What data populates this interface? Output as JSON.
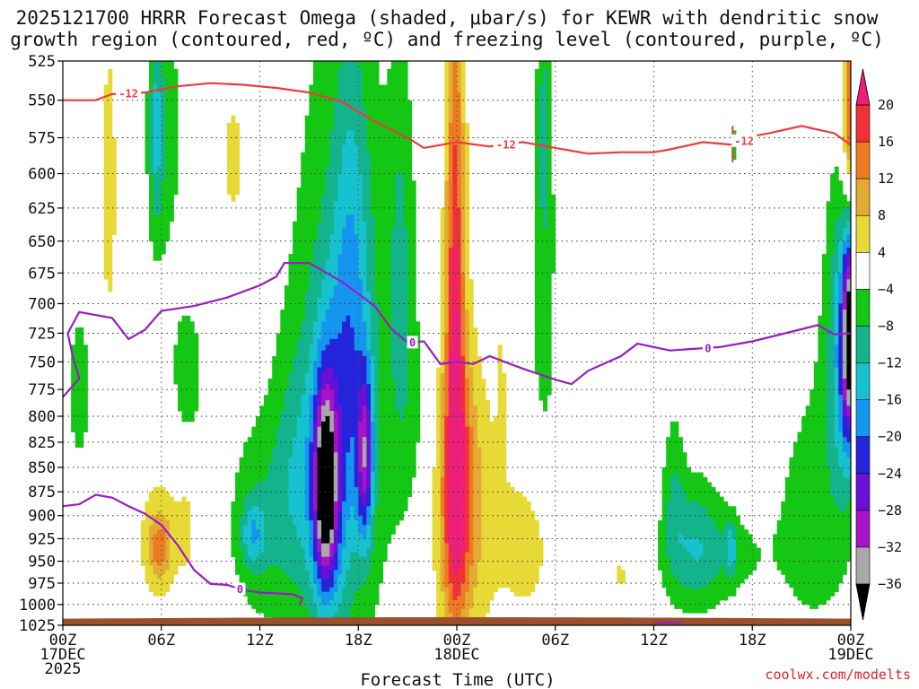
{
  "chart_data": {
    "type": "heatmap",
    "title_lines": [
      "2025121700 HRRR Forecast Omega (shaded, μbar/s) for KEWR with dendritic snow",
      "growth region (contoured, red, ºC) and freezing level (contoured, purple, ºC)"
    ],
    "xlabel": "Forecast Time (UTC)",
    "credit": "coolwx.com/modelts",
    "x_range_hours": [
      0,
      48
    ],
    "y_range_hpa": [
      525,
      1025
    ],
    "y_ticks": [
      525,
      550,
      575,
      600,
      625,
      650,
      675,
      700,
      725,
      750,
      775,
      800,
      825,
      850,
      875,
      900,
      925,
      950,
      975,
      1000,
      1025
    ],
    "x_ticks": [
      {
        "hour": 0,
        "lines": [
          "00Z",
          "17DEC",
          "2025"
        ]
      },
      {
        "hour": 6,
        "lines": [
          "06Z"
        ]
      },
      {
        "hour": 12,
        "lines": [
          "12Z"
        ]
      },
      {
        "hour": 18,
        "lines": [
          "18Z"
        ]
      },
      {
        "hour": 24,
        "lines": [
          "00Z",
          "18DEC"
        ]
      },
      {
        "hour": 30,
        "lines": [
          "06Z"
        ]
      },
      {
        "hour": 36,
        "lines": [
          "12Z"
        ]
      },
      {
        "hour": 42,
        "lines": [
          "18Z"
        ]
      },
      {
        "hour": 48,
        "lines": [
          "00Z",
          "19DEC"
        ]
      }
    ],
    "colorbar": {
      "labels": [
        20,
        16,
        12,
        8,
        4,
        -4,
        -8,
        -12,
        -16,
        -20,
        -24,
        -28,
        -32,
        -36
      ],
      "bins": [
        {
          "range": [
            16,
            20
          ],
          "color": "#f2303a"
        },
        {
          "range": [
            12,
            16
          ],
          "color": "#ee7a22"
        },
        {
          "range": [
            8,
            12
          ],
          "color": "#e3ab33"
        },
        {
          "range": [
            4,
            8
          ],
          "color": "#e8da36"
        },
        {
          "range": [
            -4,
            4
          ],
          "color": "#ffffff"
        },
        {
          "range": [
            -8,
            -4
          ],
          "color": "#14c714"
        },
        {
          "range": [
            -12,
            -8
          ],
          "color": "#13b48c"
        },
        {
          "range": [
            -16,
            -12
          ],
          "color": "#16c2cf"
        },
        {
          "range": [
            -20,
            -16
          ],
          "color": "#1496f0"
        },
        {
          "range": [
            -24,
            -20
          ],
          "color": "#2424dc"
        },
        {
          "range": [
            -28,
            -24
          ],
          "color": "#6a10d6"
        },
        {
          "range": [
            -32,
            -28
          ],
          "color": "#a812c8"
        },
        {
          "range": [
            -36,
            -32
          ],
          "color": "#a9a9a9"
        }
      ],
      "above_color": "#ee1e7a",
      "below_color": "#000000"
    },
    "ground_color": "#9b4f2a",
    "red_contour": {
      "label": "-12",
      "color": "#ee3b3b",
      "points": [
        [
          0,
          550
        ],
        [
          2,
          550
        ],
        [
          3,
          546
        ],
        [
          5,
          545
        ],
        [
          7,
          541
        ],
        [
          9,
          539
        ],
        [
          11,
          540
        ],
        [
          13,
          542
        ],
        [
          15,
          545
        ],
        [
          17,
          551
        ],
        [
          19,
          564
        ],
        [
          21,
          575
        ],
        [
          22,
          582
        ],
        [
          24,
          578
        ],
        [
          26,
          581
        ],
        [
          28,
          578
        ],
        [
          30,
          582
        ],
        [
          32,
          586
        ],
        [
          34,
          585
        ],
        [
          36,
          585
        ],
        [
          37,
          583
        ],
        [
          39,
          578
        ],
        [
          41,
          580
        ],
        [
          42,
          574
        ],
        [
          43,
          572
        ],
        [
          45,
          567
        ],
        [
          47,
          572
        ],
        [
          48,
          580
        ]
      ],
      "label_hours": [
        4,
        27,
        41.5
      ]
    },
    "purple_contour": {
      "label": "0",
      "color": "#9a1dc2",
      "upper_points": [
        [
          0,
          782
        ],
        [
          1,
          765
        ],
        [
          0.6,
          745
        ],
        [
          0.3,
          725
        ],
        [
          1,
          707
        ],
        [
          3,
          712
        ],
        [
          4,
          730
        ],
        [
          5,
          722
        ],
        [
          6,
          706
        ],
        [
          8,
          702
        ],
        [
          10,
          695
        ],
        [
          12,
          685
        ],
        [
          13,
          678
        ],
        [
          13.5,
          667
        ],
        [
          15,
          667
        ],
        [
          17,
          682
        ],
        [
          19,
          702
        ],
        [
          20,
          721
        ],
        [
          21,
          733
        ],
        [
          22,
          732
        ],
        [
          23,
          752
        ],
        [
          24,
          750
        ],
        [
          25,
          752
        ],
        [
          26,
          745
        ],
        [
          28,
          756
        ],
        [
          30,
          766
        ],
        [
          31,
          770
        ],
        [
          32,
          758
        ],
        [
          34,
          745
        ],
        [
          35,
          734
        ],
        [
          37,
          740
        ],
        [
          38,
          739
        ],
        [
          40,
          737
        ],
        [
          42,
          732
        ],
        [
          44,
          725
        ],
        [
          46,
          718
        ],
        [
          47,
          726
        ],
        [
          48,
          725
        ]
      ],
      "lower_points": [
        [
          0,
          890
        ],
        [
          1,
          888
        ],
        [
          2,
          878
        ],
        [
          3,
          881
        ],
        [
          4,
          890
        ],
        [
          5,
          898
        ],
        [
          6,
          910
        ],
        [
          7,
          932
        ],
        [
          8,
          960
        ],
        [
          9,
          976
        ],
        [
          10,
          977
        ],
        [
          11,
          983
        ],
        [
          12,
          986
        ],
        [
          14,
          988
        ],
        [
          14.6,
          993
        ],
        [
          14.4,
          1001
        ]
      ],
      "ground_points": [
        [
          36,
          1023
        ],
        [
          37,
          1021
        ],
        [
          37.7,
          1023
        ]
      ],
      "label_hours": [
        10.8,
        21.3,
        39.3
      ]
    }
  }
}
